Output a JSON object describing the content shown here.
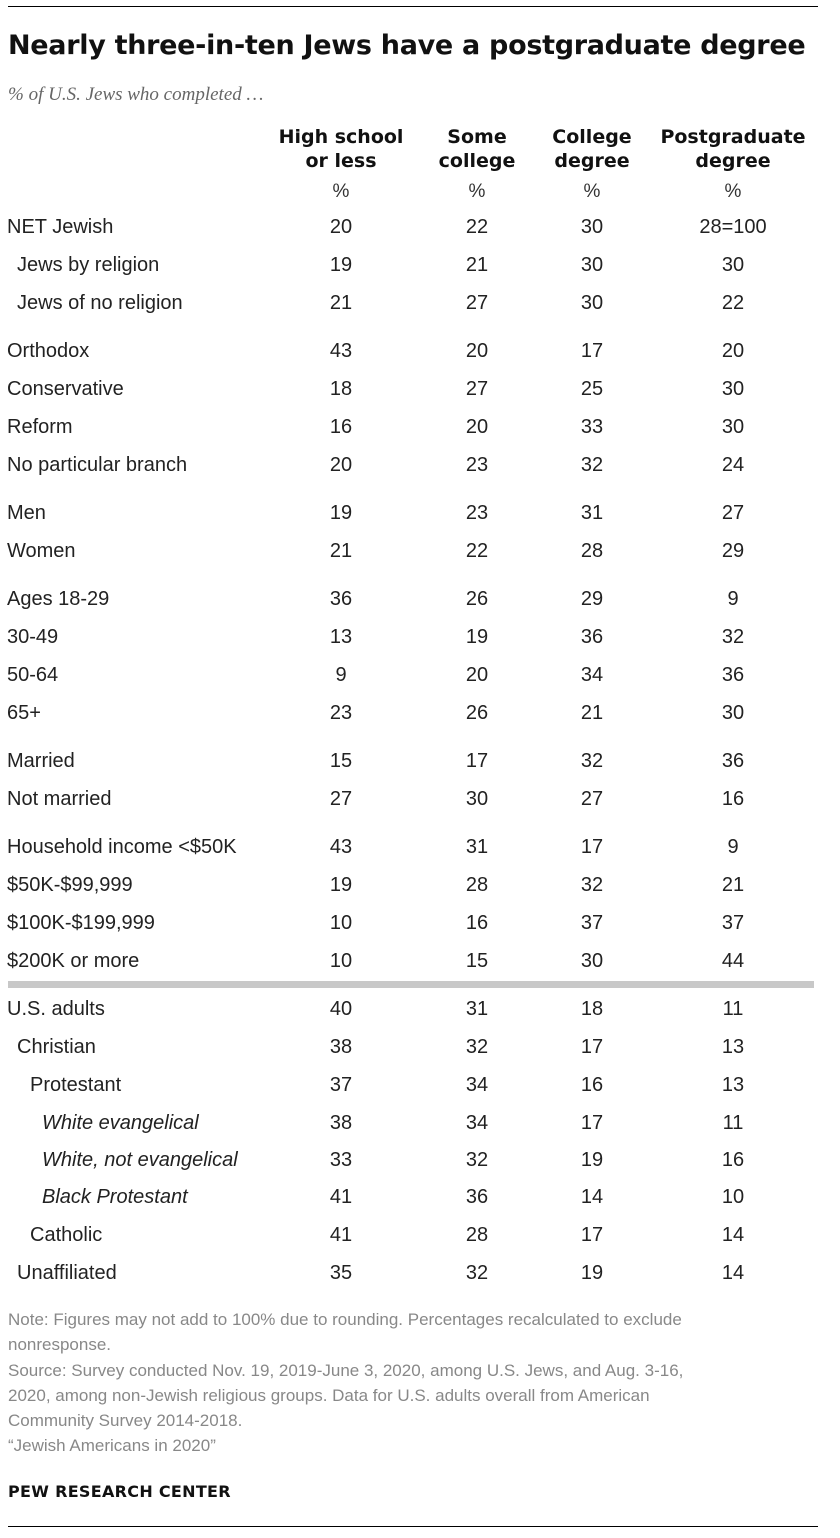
{
  "title": "Nearly three-in-ten Jews have a postgraduate degree",
  "subtitle": "% of U.S. Jews who completed …",
  "chart_data": {
    "type": "table",
    "columns": [
      {
        "line1": "High school",
        "line2": "or less",
        "unit": "%"
      },
      {
        "line1": "Some",
        "line2": "college",
        "unit": "%"
      },
      {
        "line1": "College",
        "line2": "degree",
        "unit": "%"
      },
      {
        "line1": "Postgraduate",
        "line2": "degree",
        "unit": "%"
      }
    ],
    "rows": [
      {
        "label": "NET Jewish",
        "indent": 0,
        "italic": false,
        "values": [
          "20",
          "22",
          "30",
          "28=100"
        ]
      },
      {
        "label": "Jews by religion",
        "indent": 1,
        "italic": false,
        "values": [
          "19",
          "21",
          "30",
          "30"
        ]
      },
      {
        "label": "Jews of no religion",
        "indent": 1,
        "italic": false,
        "values": [
          "21",
          "27",
          "30",
          "22"
        ]
      },
      {
        "label": "Orthodox",
        "indent": 0,
        "italic": false,
        "values": [
          "43",
          "20",
          "17",
          "20"
        ]
      },
      {
        "label": "Conservative",
        "indent": 0,
        "italic": false,
        "values": [
          "18",
          "27",
          "25",
          "30"
        ]
      },
      {
        "label": "Reform",
        "indent": 0,
        "italic": false,
        "values": [
          "16",
          "20",
          "33",
          "30"
        ]
      },
      {
        "label": "No particular branch",
        "indent": 0,
        "italic": false,
        "values": [
          "20",
          "23",
          "32",
          "24"
        ]
      },
      {
        "label": "Men",
        "indent": 0,
        "italic": false,
        "values": [
          "19",
          "23",
          "31",
          "27"
        ]
      },
      {
        "label": "Women",
        "indent": 0,
        "italic": false,
        "values": [
          "21",
          "22",
          "28",
          "29"
        ]
      },
      {
        "label": "Ages 18-29",
        "indent": 0,
        "italic": false,
        "values": [
          "36",
          "26",
          "29",
          "9"
        ]
      },
      {
        "label": "30-49",
        "indent": 0,
        "italic": false,
        "values": [
          "13",
          "19",
          "36",
          "32"
        ]
      },
      {
        "label": "50-64",
        "indent": 0,
        "italic": false,
        "values": [
          "9",
          "20",
          "34",
          "36"
        ]
      },
      {
        "label": "65+",
        "indent": 0,
        "italic": false,
        "values": [
          "23",
          "26",
          "21",
          "30"
        ]
      },
      {
        "label": "Married",
        "indent": 0,
        "italic": false,
        "values": [
          "15",
          "17",
          "32",
          "36"
        ]
      },
      {
        "label": "Not married",
        "indent": 0,
        "italic": false,
        "values": [
          "27",
          "30",
          "27",
          "16"
        ]
      },
      {
        "label": "Household income <$50K",
        "indent": 0,
        "italic": false,
        "values": [
          "43",
          "31",
          "17",
          "9"
        ]
      },
      {
        "label": "$50K-$99,999",
        "indent": 0,
        "italic": false,
        "values": [
          "19",
          "28",
          "32",
          "21"
        ]
      },
      {
        "label": "$100K-$199,999",
        "indent": 0,
        "italic": false,
        "values": [
          "10",
          "16",
          "37",
          "37"
        ]
      },
      {
        "label": "$200K or more",
        "indent": 0,
        "italic": false,
        "values": [
          "10",
          "15",
          "30",
          "44"
        ]
      },
      {
        "label": "U.S. adults",
        "indent": 0,
        "italic": false,
        "values": [
          "40",
          "31",
          "18",
          "11"
        ]
      },
      {
        "label": "Christian",
        "indent": 1,
        "italic": false,
        "values": [
          "38",
          "32",
          "17",
          "13"
        ]
      },
      {
        "label": "Protestant",
        "indent": 2,
        "italic": false,
        "values": [
          "37",
          "34",
          "16",
          "13"
        ]
      },
      {
        "label": "White evangelical",
        "indent": 3,
        "italic": true,
        "values": [
          "38",
          "34",
          "17",
          "11"
        ]
      },
      {
        "label": "White, not evangelical",
        "indent": 3,
        "italic": true,
        "values": [
          "33",
          "32",
          "19",
          "16"
        ]
      },
      {
        "label": "Black Protestant",
        "indent": 3,
        "italic": true,
        "values": [
          "41",
          "36",
          "14",
          "10"
        ]
      },
      {
        "label": "Catholic",
        "indent": 2,
        "italic": false,
        "values": [
          "41",
          "28",
          "17",
          "14"
        ]
      },
      {
        "label": "Unaffiliated",
        "indent": 1,
        "italic": false,
        "values": [
          "35",
          "32",
          "19",
          "14"
        ]
      }
    ]
  },
  "notes": [
    "Note: Figures may not add to 100% due to rounding. Percentages recalculated to exclude",
    "nonresponse.",
    "Source: Survey conducted Nov. 19, 2019-June 3, 2020, among U.S. Jews, and Aug. 3-16,",
    "2020, among non-Jewish religious groups. Data for U.S. adults overall from American",
    "Community Survey 2014-2018.",
    "“Jewish Americans in 2020”"
  ],
  "source_org": "PEW RESEARCH CENTER",
  "colors": {
    "divider": "#c8c8c8",
    "note_text": "#888888",
    "title_text": "#111111"
  }
}
